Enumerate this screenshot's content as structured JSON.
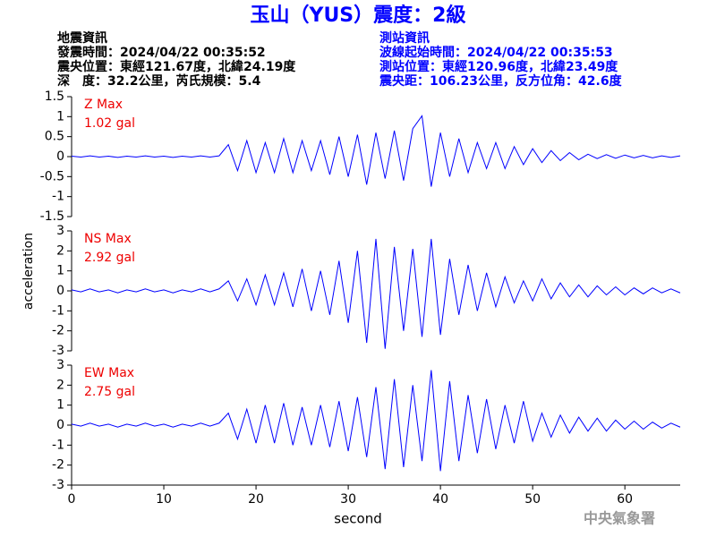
{
  "header": {
    "title": "玉山（YUS）震度：2級",
    "left": [
      "地震資訊",
      "發震時間：2024/04/22 00:35:52",
      "震央位置：東經121.67度，北緯24.19度",
      "深　度：32.2公里，芮氏規模：5.4"
    ],
    "right": [
      "測站資訊",
      "波線起始時間：2024/04/22 00:35:53",
      "測站位置：東經120.96度，北緯23.49度",
      "震央距：106.23公里，反方位角：42.6度"
    ]
  },
  "watermark": "中央氣象署",
  "chart_data": [
    {
      "type": "line",
      "annotation": [
        "Z Max",
        "1.02 gal"
      ],
      "color": "#0000ff",
      "xlim": [
        0,
        66
      ],
      "ylim": [
        -1.5,
        1.5
      ],
      "yticks": [
        -1.5,
        -1,
        -0.5,
        0,
        0.5,
        1,
        1.5
      ],
      "x": [
        0,
        1,
        2,
        3,
        4,
        5,
        6,
        7,
        8,
        9,
        10,
        11,
        12,
        13,
        14,
        15,
        16,
        17,
        18,
        19,
        20,
        21,
        22,
        23,
        24,
        25,
        26,
        27,
        28,
        29,
        30,
        31,
        32,
        33,
        34,
        35,
        36,
        37,
        38,
        39,
        40,
        41,
        42,
        43,
        44,
        45,
        46,
        47,
        48,
        49,
        50,
        51,
        52,
        53,
        54,
        55,
        56,
        57,
        58,
        59,
        60,
        61,
        62,
        63,
        64,
        65,
        66
      ],
      "values": [
        0.01,
        -0.01,
        0.02,
        -0.01,
        0.01,
        -0.02,
        0.01,
        -0.01,
        0.02,
        -0.01,
        0.01,
        -0.02,
        0.01,
        -0.01,
        0.02,
        -0.01,
        0.02,
        0.3,
        -0.35,
        0.4,
        -0.4,
        0.35,
        -0.4,
        0.45,
        -0.4,
        0.4,
        -0.35,
        0.4,
        -0.45,
        0.5,
        -0.5,
        0.55,
        -0.7,
        0.6,
        -0.55,
        0.65,
        -0.6,
        0.7,
        1.02,
        -0.75,
        0.6,
        -0.5,
        0.45,
        -0.4,
        0.35,
        -0.3,
        0.35,
        -0.3,
        0.25,
        -0.2,
        0.2,
        -0.15,
        0.15,
        -0.1,
        0.1,
        -0.08,
        0.06,
        -0.05,
        0.05,
        -0.04,
        0.04,
        -0.03,
        0.03,
        -0.03,
        0.02,
        -0.02,
        0.02
      ]
    },
    {
      "type": "line",
      "annotation": [
        "NS Max",
        "2.92 gal"
      ],
      "color": "#0000ff",
      "ylabel": "acceleration",
      "xlim": [
        0,
        66
      ],
      "ylim": [
        -3,
        3
      ],
      "yticks": [
        -3,
        -2,
        -1,
        0,
        1,
        2,
        3
      ],
      "x": [
        0,
        1,
        2,
        3,
        4,
        5,
        6,
        7,
        8,
        9,
        10,
        11,
        12,
        13,
        14,
        15,
        16,
        17,
        18,
        19,
        20,
        21,
        22,
        23,
        24,
        25,
        26,
        27,
        28,
        29,
        30,
        31,
        32,
        33,
        34,
        35,
        36,
        37,
        38,
        39,
        40,
        41,
        42,
        43,
        44,
        45,
        46,
        47,
        48,
        49,
        50,
        51,
        52,
        53,
        54,
        55,
        56,
        57,
        58,
        59,
        60,
        61,
        62,
        63,
        64,
        65,
        66
      ],
      "values": [
        0.05,
        -0.05,
        0.1,
        -0.05,
        0.05,
        -0.1,
        0.05,
        -0.05,
        0.1,
        -0.05,
        0.05,
        -0.1,
        0.05,
        -0.05,
        0.1,
        -0.05,
        0.1,
        0.5,
        -0.5,
        0.6,
        -0.7,
        0.8,
        -0.7,
        0.9,
        -0.8,
        1.1,
        -1.0,
        1.0,
        -1.2,
        1.5,
        -1.6,
        2.0,
        -2.6,
        2.6,
        -2.9,
        2.2,
        -2.0,
        2.1,
        -2.3,
        2.6,
        -2.2,
        1.6,
        -1.2,
        1.3,
        -1.0,
        0.9,
        -0.8,
        0.7,
        -0.6,
        0.5,
        -0.5,
        0.6,
        -0.4,
        0.4,
        -0.3,
        0.3,
        -0.3,
        0.25,
        -0.2,
        0.2,
        -0.2,
        0.15,
        -0.15,
        0.15,
        -0.1,
        0.1,
        -0.1
      ]
    },
    {
      "type": "line",
      "annotation": [
        "EW Max",
        "2.75 gal"
      ],
      "color": "#0000ff",
      "xlabel": "second",
      "xlim": [
        0,
        66
      ],
      "xticks": [
        0,
        10,
        20,
        30,
        40,
        50,
        60
      ],
      "ylim": [
        -3,
        3
      ],
      "yticks": [
        -3,
        -2,
        -1,
        0,
        1,
        2,
        3
      ],
      "x": [
        0,
        1,
        2,
        3,
        4,
        5,
        6,
        7,
        8,
        9,
        10,
        11,
        12,
        13,
        14,
        15,
        16,
        17,
        18,
        19,
        20,
        21,
        22,
        23,
        24,
        25,
        26,
        27,
        28,
        29,
        30,
        31,
        32,
        33,
        34,
        35,
        36,
        37,
        38,
        39,
        40,
        41,
        42,
        43,
        44,
        45,
        46,
        47,
        48,
        49,
        50,
        51,
        52,
        53,
        54,
        55,
        56,
        57,
        58,
        59,
        60,
        61,
        62,
        63,
        64,
        65,
        66
      ],
      "values": [
        0.05,
        -0.05,
        0.1,
        -0.05,
        0.05,
        -0.1,
        0.05,
        -0.05,
        0.1,
        -0.05,
        0.05,
        -0.1,
        0.05,
        -0.05,
        0.1,
        -0.05,
        0.1,
        0.6,
        -0.7,
        0.8,
        -0.9,
        1.0,
        -0.9,
        1.1,
        -1.0,
        0.9,
        -1.0,
        1.0,
        -1.1,
        1.2,
        -1.3,
        1.4,
        -1.6,
        1.9,
        -2.2,
        2.3,
        -2.1,
        2.0,
        -1.8,
        2.75,
        -2.3,
        2.2,
        -1.8,
        1.5,
        -1.4,
        1.3,
        -1.2,
        1.0,
        -0.9,
        1.2,
        -0.8,
        0.6,
        -0.6,
        0.5,
        -0.4,
        0.4,
        -0.3,
        0.35,
        -0.3,
        0.25,
        -0.2,
        0.2,
        -0.2,
        0.15,
        -0.15,
        0.1,
        -0.1
      ]
    }
  ]
}
